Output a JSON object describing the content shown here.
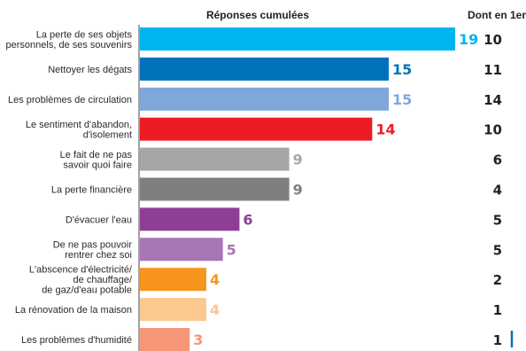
{
  "chart_data": {
    "type": "bar",
    "orientation": "horizontal",
    "column_headers": {
      "cumulative": "Réponses cumulées",
      "first": "Dont en 1er"
    },
    "xlim": [
      0,
      19
    ],
    "grid": false,
    "categories": [
      [
        "La perte de ses objets",
        "personnels, de ses souvenirs"
      ],
      [
        "Nettoyer les dégats"
      ],
      [
        "Les problèmes de circulation"
      ],
      [
        "Le sentiment d'abandon,",
        "d'isolement"
      ],
      [
        "Le fait de ne pas",
        "savoir quoi faire"
      ],
      [
        "La perte financière"
      ],
      [
        "D'évacuer l'eau"
      ],
      [
        "De ne pas pouvoir",
        "rentrer chez soi"
      ],
      [
        "L'abscence d'électricité/",
        "de chauffage/",
        "de gaz/d'eau potable"
      ],
      [
        "La rénovation de la maison"
      ],
      [
        "Les problèmes d'humidité"
      ]
    ],
    "series": [
      {
        "values": [
          19,
          15,
          15,
          14,
          9,
          9,
          6,
          5,
          4,
          4,
          3
        ]
      },
      {
        "values": [
          10,
          11,
          14,
          10,
          6,
          4,
          5,
          5,
          2,
          1,
          1
        ]
      }
    ],
    "colors": [
      "#00b5ef",
      "#0072bb",
      "#7fa7d9",
      "#ed1c24",
      "#a6a6a6",
      "#7f7f7f",
      "#8e3e97",
      "#a875b5",
      "#f7941d",
      "#fbc98e",
      "#f69679"
    ],
    "accent_color": "#0072bb"
  }
}
